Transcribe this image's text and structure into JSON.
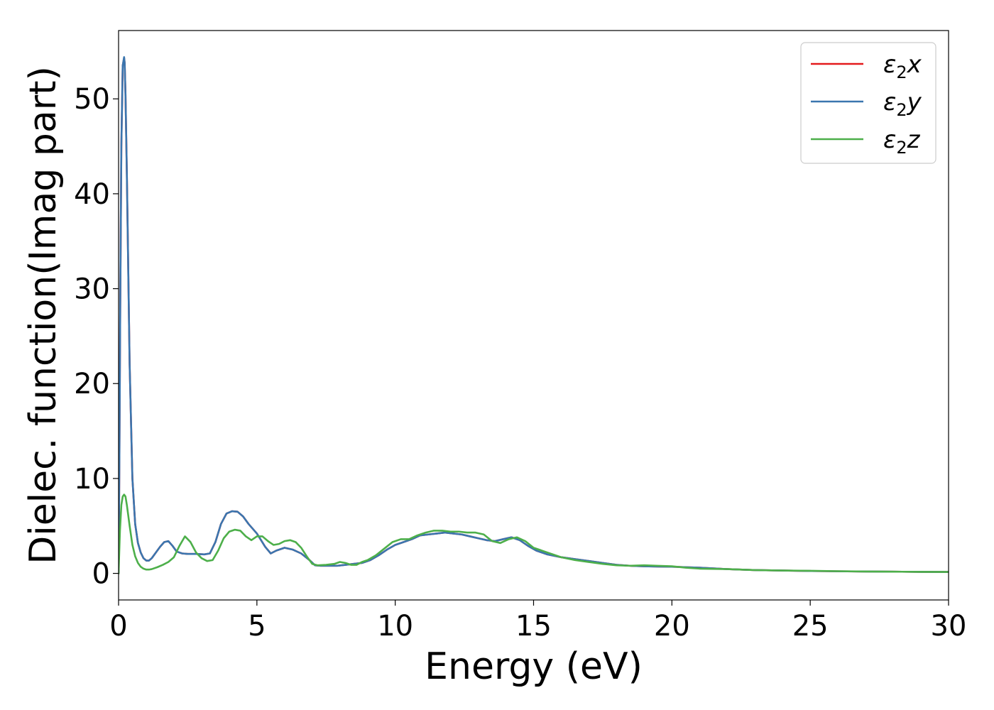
{
  "chart_data": {
    "type": "line",
    "xlabel": "Energy (eV)",
    "ylabel": "Dielec. function(Imag part)",
    "xlim": [
      0,
      30
    ],
    "ylim": [
      -2.8,
      57.2
    ],
    "xticks": [
      0,
      5,
      10,
      15,
      20,
      25,
      30
    ],
    "yticks": [
      0,
      10,
      20,
      30,
      40,
      50
    ],
    "grid": false,
    "legend_position": "top-right",
    "series": [
      {
        "name": "ε₂x",
        "legend_main": "ε",
        "legend_sub": "2",
        "legend_suffix": "x",
        "color": "#e41a1c",
        "x": [
          0,
          0.03,
          0.06,
          0.1,
          0.15,
          0.2,
          0.22,
          0.25,
          0.3,
          0.35,
          0.4,
          0.5,
          0.6,
          0.7,
          0.8,
          0.9,
          1.0,
          1.1,
          1.2,
          1.35,
          1.5,
          1.65,
          1.8,
          1.95,
          2.1,
          2.3,
          2.5,
          2.8,
          3.1,
          3.3,
          3.5,
          3.7,
          3.9,
          4.1,
          4.3,
          4.5,
          4.7,
          5.0,
          5.3,
          5.5,
          5.7,
          6.0,
          6.3,
          6.6,
          6.9,
          7.1,
          7.3,
          7.6,
          7.9,
          8.2,
          8.5,
          8.8,
          9.1,
          9.4,
          9.7,
          10.0,
          10.3,
          10.6,
          10.9,
          11.2,
          11.5,
          11.8,
          12.1,
          12.4,
          12.7,
          13.0,
          13.3,
          13.6,
          13.9,
          14.2,
          14.5,
          14.8,
          15.1,
          15.5,
          16.0,
          16.5,
          17.0,
          17.5,
          18.0,
          18.5,
          19.0,
          19.5,
          20.0,
          20.5,
          21.0,
          22.0,
          23.0,
          24.0,
          25.0,
          26.0,
          27.0,
          28.0,
          29.0,
          30.0
        ],
        "y": [
          0,
          12,
          28,
          45,
          53.5,
          54.3,
          53.8,
          50.5,
          42,
          32,
          22,
          10,
          5.2,
          3.2,
          2.2,
          1.6,
          1.35,
          1.35,
          1.6,
          2.2,
          2.8,
          3.3,
          3.4,
          2.9,
          2.3,
          2.1,
          2.05,
          2.05,
          2.0,
          2.1,
          3.3,
          5.2,
          6.3,
          6.55,
          6.5,
          6.0,
          5.2,
          4.2,
          2.8,
          2.1,
          2.4,
          2.7,
          2.5,
          2.1,
          1.4,
          0.85,
          0.8,
          0.8,
          0.8,
          0.9,
          1.0,
          1.1,
          1.4,
          1.9,
          2.5,
          3.0,
          3.3,
          3.6,
          4.0,
          4.1,
          4.2,
          4.3,
          4.2,
          4.1,
          3.9,
          3.7,
          3.5,
          3.4,
          3.6,
          3.8,
          3.5,
          2.9,
          2.4,
          2.0,
          1.7,
          1.5,
          1.3,
          1.1,
          0.9,
          0.8,
          0.75,
          0.72,
          0.7,
          0.65,
          0.6,
          0.45,
          0.35,
          0.3,
          0.25,
          0.22,
          0.2,
          0.18,
          0.16,
          0.15
        ]
      },
      {
        "name": "ε₂y",
        "legend_main": "ε",
        "legend_sub": "2",
        "legend_suffix": "y",
        "color": "#3a76af",
        "x": [
          0,
          0.03,
          0.06,
          0.1,
          0.15,
          0.2,
          0.22,
          0.25,
          0.3,
          0.35,
          0.4,
          0.5,
          0.6,
          0.7,
          0.8,
          0.9,
          1.0,
          1.1,
          1.2,
          1.35,
          1.5,
          1.65,
          1.8,
          1.95,
          2.1,
          2.3,
          2.5,
          2.8,
          3.1,
          3.3,
          3.5,
          3.7,
          3.9,
          4.1,
          4.3,
          4.5,
          4.7,
          5.0,
          5.3,
          5.5,
          5.7,
          6.0,
          6.3,
          6.6,
          6.9,
          7.1,
          7.3,
          7.6,
          7.9,
          8.2,
          8.5,
          8.8,
          9.1,
          9.4,
          9.7,
          10.0,
          10.3,
          10.6,
          10.9,
          11.2,
          11.5,
          11.8,
          12.1,
          12.4,
          12.7,
          13.0,
          13.3,
          13.6,
          13.9,
          14.2,
          14.5,
          14.8,
          15.1,
          15.5,
          16.0,
          16.5,
          17.0,
          17.5,
          18.0,
          18.5,
          19.0,
          19.5,
          20.0,
          20.5,
          21.0,
          22.0,
          23.0,
          24.0,
          25.0,
          26.0,
          27.0,
          28.0,
          29.0,
          30.0
        ],
        "y": [
          0,
          12,
          28,
          45,
          53.5,
          54.4,
          53.8,
          50.5,
          42,
          32,
          22,
          10,
          5.2,
          3.2,
          2.2,
          1.6,
          1.35,
          1.35,
          1.6,
          2.2,
          2.8,
          3.3,
          3.4,
          2.9,
          2.3,
          2.1,
          2.05,
          2.05,
          2.0,
          2.1,
          3.3,
          5.2,
          6.3,
          6.55,
          6.5,
          6.0,
          5.2,
          4.2,
          2.8,
          2.1,
          2.4,
          2.7,
          2.5,
          2.1,
          1.4,
          0.85,
          0.8,
          0.8,
          0.8,
          0.9,
          1.0,
          1.1,
          1.4,
          1.9,
          2.5,
          3.0,
          3.3,
          3.6,
          4.0,
          4.1,
          4.2,
          4.3,
          4.2,
          4.1,
          3.9,
          3.7,
          3.5,
          3.4,
          3.6,
          3.8,
          3.5,
          2.9,
          2.4,
          2.0,
          1.7,
          1.5,
          1.3,
          1.1,
          0.9,
          0.8,
          0.75,
          0.72,
          0.7,
          0.65,
          0.6,
          0.45,
          0.35,
          0.3,
          0.25,
          0.22,
          0.2,
          0.18,
          0.16,
          0.15
        ]
      },
      {
        "name": "ε₂z",
        "legend_main": "ε",
        "legend_sub": "2",
        "legend_suffix": "z",
        "color": "#4daf4a",
        "x": [
          0,
          0.05,
          0.1,
          0.15,
          0.2,
          0.25,
          0.3,
          0.4,
          0.5,
          0.6,
          0.7,
          0.8,
          0.9,
          1.0,
          1.1,
          1.2,
          1.4,
          1.6,
          1.8,
          2.0,
          2.2,
          2.4,
          2.6,
          2.8,
          3.0,
          3.2,
          3.4,
          3.6,
          3.8,
          4.0,
          4.2,
          4.4,
          4.6,
          4.8,
          5.0,
          5.2,
          5.4,
          5.6,
          5.8,
          6.0,
          6.2,
          6.4,
          6.6,
          6.8,
          7.0,
          7.2,
          7.5,
          7.8,
          8.0,
          8.2,
          8.4,
          8.6,
          8.8,
          9.0,
          9.3,
          9.6,
          9.9,
          10.2,
          10.5,
          10.8,
          11.1,
          11.4,
          11.7,
          12.0,
          12.3,
          12.6,
          12.9,
          13.2,
          13.5,
          13.8,
          14.1,
          14.4,
          14.7,
          15.0,
          15.5,
          16.0,
          16.5,
          17.0,
          17.5,
          18.0,
          18.5,
          19.0,
          19.5,
          20.0,
          20.5,
          21.0,
          22.0,
          23.0,
          24.0,
          25.0,
          26.0,
          27.0,
          28.0,
          29.0,
          30.0
        ],
        "y": [
          0,
          4.5,
          7.2,
          8.1,
          8.3,
          8.1,
          7.2,
          5.0,
          3.0,
          1.8,
          1.1,
          0.7,
          0.5,
          0.4,
          0.4,
          0.45,
          0.65,
          0.9,
          1.2,
          1.7,
          2.9,
          3.9,
          3.3,
          2.2,
          1.6,
          1.3,
          1.4,
          2.4,
          3.7,
          4.4,
          4.6,
          4.5,
          3.9,
          3.5,
          3.9,
          3.9,
          3.4,
          3.0,
          3.1,
          3.4,
          3.5,
          3.3,
          2.7,
          1.8,
          1.0,
          0.85,
          0.9,
          1.0,
          1.2,
          1.1,
          0.9,
          0.9,
          1.2,
          1.4,
          1.9,
          2.6,
          3.3,
          3.6,
          3.6,
          4.0,
          4.3,
          4.5,
          4.5,
          4.4,
          4.4,
          4.3,
          4.3,
          4.1,
          3.4,
          3.2,
          3.6,
          3.8,
          3.4,
          2.7,
          2.2,
          1.7,
          1.4,
          1.2,
          1.0,
          0.85,
          0.8,
          0.85,
          0.8,
          0.75,
          0.6,
          0.5,
          0.45,
          0.35,
          0.3,
          0.27,
          0.23,
          0.2,
          0.18,
          0.16,
          0.15
        ]
      }
    ]
  }
}
